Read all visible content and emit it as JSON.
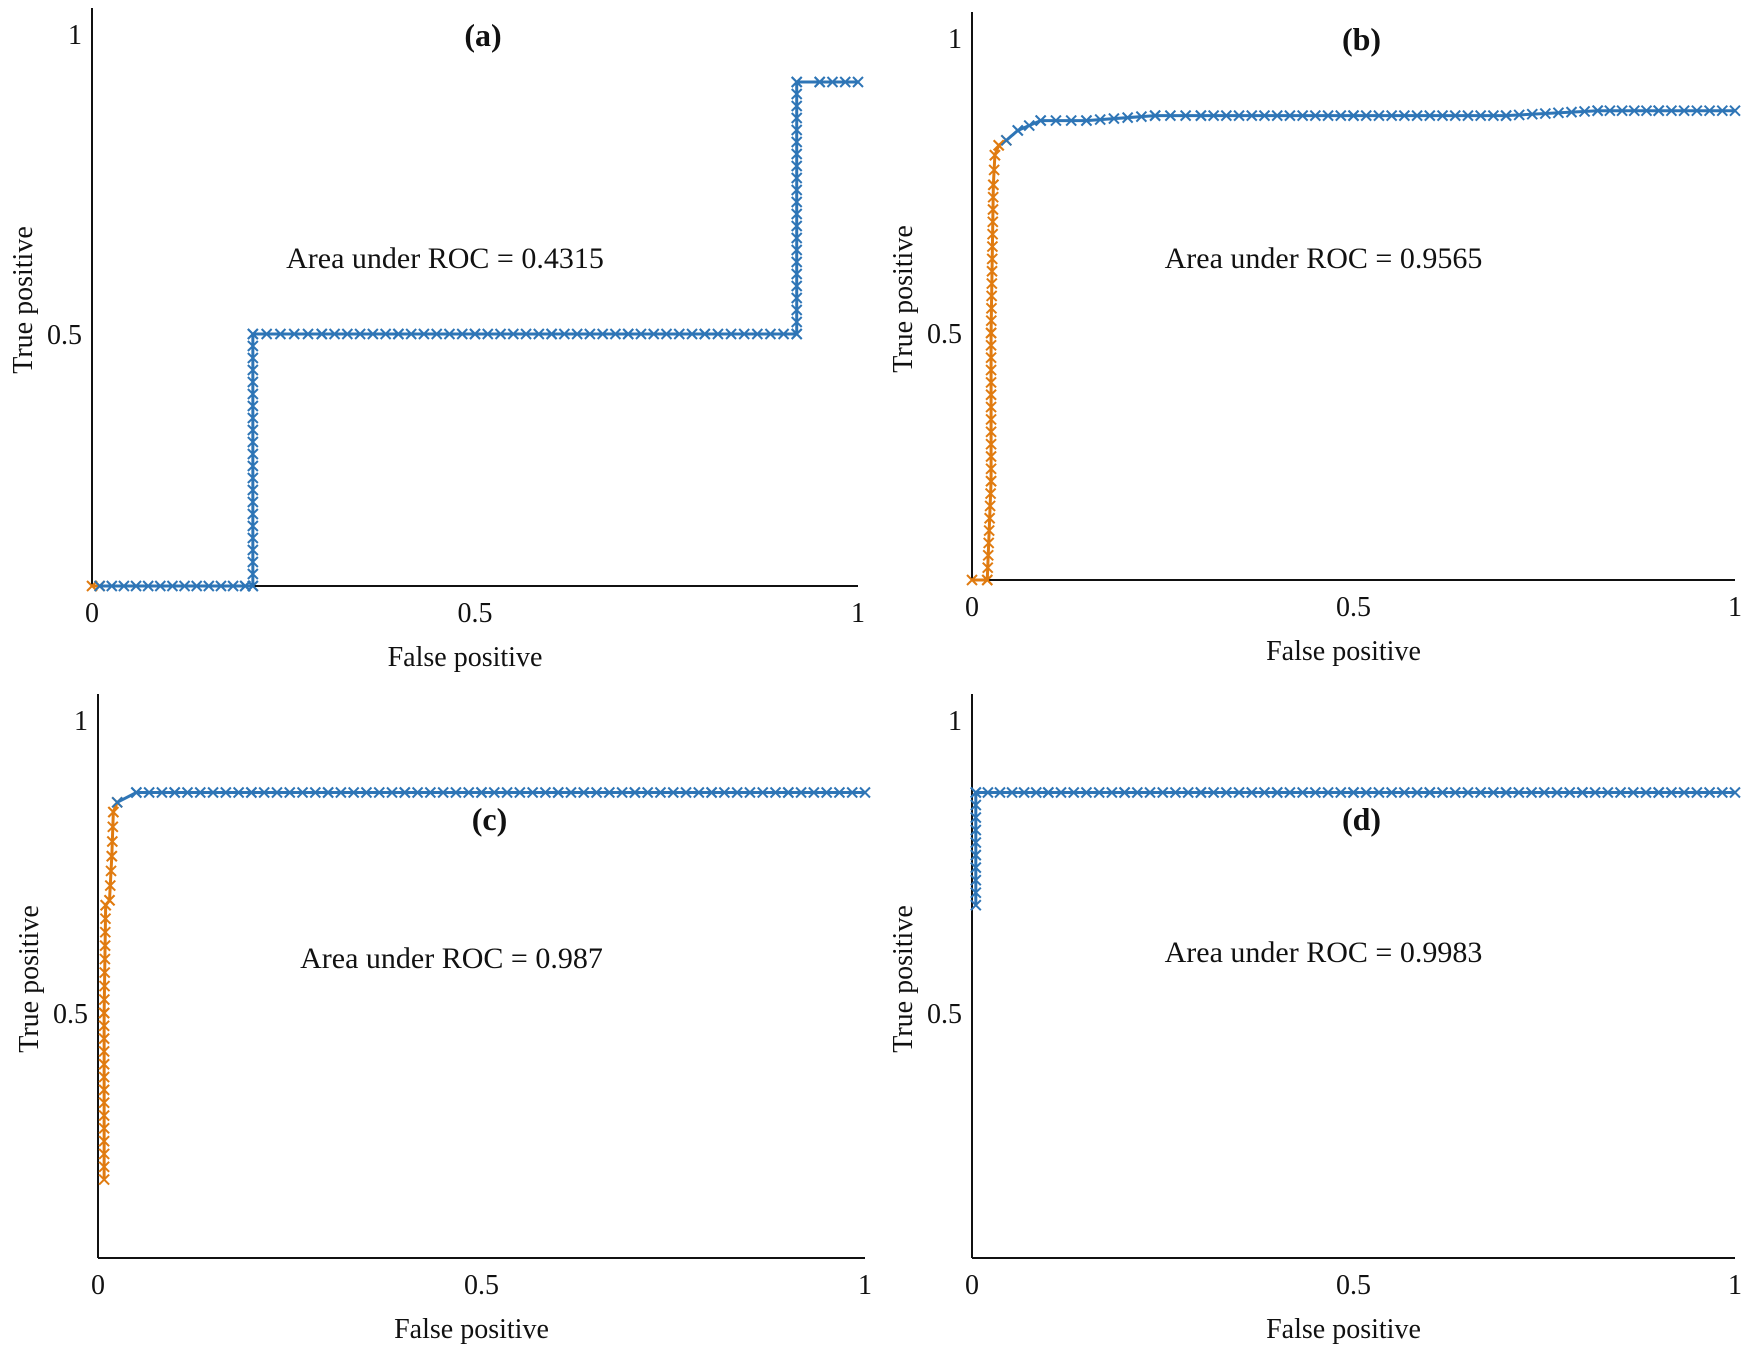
{
  "colors": {
    "axis": "#111111",
    "series_blue": "#2e75b6",
    "series_orange": "#e07b10",
    "background": "#ffffff"
  },
  "chart_data": [
    {
      "type": "line",
      "panel_label": "(a)",
      "annotation": "Area under ROC = 0.4315",
      "xlabel": "False positive",
      "ylabel": "True positive",
      "xlim": [
        0,
        1
      ],
      "ylim": [
        0,
        1
      ],
      "xticks": [
        "0",
        "0.5",
        "1"
      ],
      "yticks": [
        "0.5",
        "1"
      ],
      "series": [
        {
          "color_key": "series_orange",
          "marker": "x",
          "x": [
            0,
            0.01
          ],
          "y": [
            0,
            0
          ]
        },
        {
          "color_key": "series_blue",
          "marker": "x",
          "x": [
            0.01,
            0.2,
            0.21,
            0.21,
            0.3,
            0.4,
            0.5,
            0.6,
            0.7,
            0.8,
            0.92,
            0.92,
            0.95,
            1.0
          ],
          "y": [
            0,
            0,
            0,
            0.5,
            0.5,
            0.5,
            0.5,
            0.5,
            0.5,
            0.5,
            0.5,
            1.0,
            1.0,
            1.0
          ]
        }
      ]
    },
    {
      "type": "line",
      "panel_label": "(b)",
      "annotation": "Area under ROC = 0.9565",
      "xlabel": "False positive",
      "ylabel": "True positive",
      "xlim": [
        0,
        1
      ],
      "ylim": [
        0,
        1
      ],
      "xticks": [
        "0",
        "0.5",
        "1"
      ],
      "yticks": [
        "0.5",
        "1"
      ],
      "series": [
        {
          "color_key": "series_orange",
          "marker": "x",
          "x": [
            0,
            0.02,
            0.025,
            0.025,
            0.028,
            0.03,
            0.035,
            0.045
          ],
          "y": [
            0,
            0,
            0.2,
            0.5,
            0.8,
            0.86,
            0.88,
            0.89
          ]
        },
        {
          "color_key": "series_blue",
          "marker": "x",
          "x": [
            0.045,
            0.06,
            0.09,
            0.15,
            0.24,
            0.3,
            0.5,
            0.7,
            0.82,
            0.9,
            1.0
          ],
          "y": [
            0.89,
            0.91,
            0.93,
            0.93,
            0.94,
            0.94,
            0.94,
            0.94,
            0.95,
            0.95,
            0.95
          ]
        }
      ]
    },
    {
      "type": "line",
      "panel_label": "(c)",
      "annotation": "Area under ROC = 0.987",
      "xlabel": "False positive",
      "ylabel": "True positive",
      "xlim": [
        0,
        1
      ],
      "ylim": [
        0,
        1
      ],
      "xticks": [
        "0",
        "0.5",
        "1"
      ],
      "yticks": [
        "0.5",
        "1"
      ],
      "series": [
        {
          "color_key": "series_orange",
          "marker": "x",
          "x": [
            0.008,
            0.008,
            0.01,
            0.015,
            0.018,
            0.02,
            0.025
          ],
          "y": [
            0.16,
            0.5,
            0.72,
            0.73,
            0.82,
            0.91,
            0.93
          ]
        },
        {
          "color_key": "series_blue",
          "marker": "x",
          "x": [
            0.025,
            0.05,
            0.1,
            0.2,
            0.3,
            0.4,
            0.5,
            0.6,
            0.7,
            0.8,
            0.9,
            1.0
          ],
          "y": [
            0.93,
            0.95,
            0.95,
            0.95,
            0.95,
            0.95,
            0.95,
            0.95,
            0.95,
            0.95,
            0.95,
            0.95
          ]
        }
      ]
    },
    {
      "type": "line",
      "panel_label": "(d)",
      "annotation": "Area under ROC = 0.9983",
      "xlabel": "False positive",
      "ylabel": "True positive",
      "xlim": [
        0,
        1
      ],
      "ylim": [
        0,
        1
      ],
      "xticks": [
        "0",
        "0.5",
        "1"
      ],
      "yticks": [
        "0.5",
        "1"
      ],
      "series": [
        {
          "color_key": "series_blue",
          "marker": "x",
          "x": [
            0.005,
            0.005,
            0.1,
            0.2,
            0.3,
            0.4,
            0.5,
            0.6,
            0.7,
            0.8,
            0.9,
            1.0
          ],
          "y": [
            0.72,
            0.95,
            0.95,
            0.95,
            0.95,
            0.95,
            0.95,
            0.95,
            0.95,
            0.95,
            0.95,
            0.95
          ]
        }
      ]
    }
  ]
}
